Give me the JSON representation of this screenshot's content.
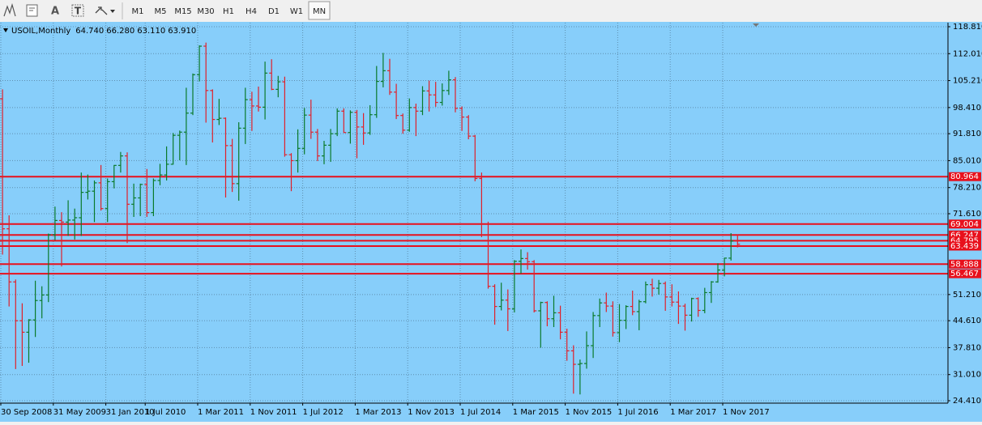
{
  "toolbar": {
    "text_tool": "A",
    "label_tool": "T",
    "timeframes": [
      "M1",
      "M5",
      "M15",
      "M30",
      "H1",
      "H4",
      "D1",
      "W1",
      "MN"
    ],
    "active": "MN"
  },
  "chart_data": {
    "type": "ohlc",
    "symbol": "USOIL,Monthly",
    "header_values": [
      "64.740",
      "66.280",
      "63.110",
      "63.910"
    ],
    "categories": [
      "30 Sep 2008",
      null,
      null,
      null,
      null,
      null,
      null,
      null,
      "31 May 2009",
      null,
      null,
      null,
      null,
      null,
      null,
      null,
      "31 Jan 2010",
      null,
      null,
      null,
      null,
      null,
      "1 Jul 2010",
      null,
      null,
      null,
      null,
      null,
      null,
      null,
      "1 Mar 2011",
      null,
      null,
      null,
      null,
      null,
      null,
      null,
      "1 Nov 2011",
      null,
      null,
      null,
      null,
      null,
      null,
      null,
      "1 Jul 2012",
      null,
      null,
      null,
      null,
      null,
      null,
      null,
      "1 Mar 2013",
      null,
      null,
      null,
      null,
      null,
      null,
      null,
      "1 Nov 2013",
      null,
      null,
      null,
      null,
      null,
      null,
      null,
      "1 Jul 2014",
      null,
      null,
      null,
      null,
      null,
      null,
      null,
      "1 Mar 2015",
      null,
      null,
      null,
      null,
      null,
      null,
      null,
      "1 Nov 2015",
      null,
      null,
      null,
      null,
      null,
      null,
      null,
      "1 Jul 2016",
      null,
      null,
      null,
      null,
      null,
      null,
      null,
      "1 Mar 2017",
      null,
      null,
      null,
      null,
      null,
      null,
      null,
      "1 Nov 2017",
      null,
      null,
      null
    ],
    "open": [
      115.5,
      100.6,
      67.8,
      54.4,
      44.6,
      41.7,
      44.8,
      49.7,
      51.1,
      66.3,
      69.9,
      69.5,
      70.0,
      70.6,
      77.0,
      77.3,
      79.4,
      72.9,
      79.7,
      83.8,
      86.2,
      74.0,
      75.6,
      79.0,
      71.9,
      80.0,
      81.4,
      84.1,
      91.4,
      92.2,
      97.0,
      106.7,
      113.9,
      102.7,
      95.4,
      95.7,
      88.8,
      79.2,
      93.2,
      100.4,
      98.8,
      98.5,
      107.1,
      103.0,
      104.9,
      86.5,
      85.0,
      88.1,
      96.5,
      92.2,
      86.2,
      88.9,
      91.8,
      97.5,
      92.1,
      97.2,
      93.5,
      92.0,
      96.6,
      105.0,
      107.7,
      102.3,
      96.4,
      92.7,
      98.4,
      97.5,
      102.6,
      101.6,
      99.7,
      102.7,
      105.4,
      98.2,
      96.0,
      91.2,
      80.5,
      66.2,
      53.3,
      48.2,
      49.8,
      47.6,
      59.6,
      60.3,
      59.5,
      47.1,
      49.2,
      45.1,
      46.6,
      41.7,
      37.0,
      33.6,
      33.8,
      38.3,
      45.9,
      49.1,
      48.3,
      41.6,
      44.7,
      48.2,
      46.9,
      49.4,
      53.7,
      52.8,
      54.0,
      50.6,
      49.3,
      48.3,
      46.0,
      50.2,
      47.2,
      51.7,
      54.4,
      57.4,
      60.4,
      64.74
    ],
    "high": [
      119.5,
      103.0,
      71.2,
      55.0,
      49.0,
      45.0,
      54.7,
      53.3,
      66.6,
      73.4,
      72.0,
      75.0,
      72.9,
      82.0,
      81.5,
      80.0,
      83.9,
      80.5,
      83.9,
      87.2,
      87.1,
      79.2,
      79.2,
      82.9,
      80.5,
      84.2,
      88.6,
      92.0,
      92.6,
      103.4,
      107.0,
      114.1,
      114.8,
      103.0,
      100.6,
      95.9,
      90.5,
      94.7,
      103.4,
      102.4,
      103.7,
      110.0,
      110.6,
      106.4,
      106.2,
      86.9,
      92.9,
      98.3,
      100.4,
      93.0,
      90.0,
      93.0,
      98.2,
      98.2,
      97.7,
      97.8,
      97.0,
      99.0,
      108.9,
      112.2,
      110.7,
      104.4,
      96.9,
      100.7,
      99.4,
      103.8,
      105.2,
      104.9,
      104.5,
      107.7,
      106.1,
      98.7,
      96.5,
      91.5,
      82.0,
      69.6,
      53.8,
      54.2,
      52.5,
      59.9,
      62.6,
      61.9,
      59.9,
      49.4,
      49.5,
      50.9,
      48.4,
      42.6,
      38.4,
      34.8,
      41.9,
      46.8,
      50.2,
      51.7,
      49.5,
      48.8,
      48.5,
      52.2,
      49.9,
      54.5,
      55.2,
      54.9,
      54.5,
      53.8,
      52.0,
      48.9,
      50.4,
      50.5,
      52.9,
      54.6,
      59.1,
      60.5,
      66.7,
      66.28
    ],
    "low": [
      90.5,
      61.3,
      48.2,
      32.4,
      33.2,
      34.0,
      40.5,
      45.2,
      49.3,
      64.9,
      58.3,
      66.0,
      65.1,
      66.0,
      75.2,
      69.5,
      72.4,
      69.5,
      78.0,
      82.0,
      64.2,
      70.8,
      71.0,
      70.8,
      71.0,
      78.8,
      80.0,
      84.0,
      85.1,
      83.9,
      96.5,
      105.0,
      94.6,
      89.6,
      94.0,
      75.7,
      77.1,
      74.9,
      89.2,
      92.5,
      97.4,
      95.4,
      102.8,
      101.0,
      86.0,
      77.3,
      82.0,
      86.6,
      90.5,
      84.9,
      84.1,
      84.7,
      91.2,
      92.0,
      89.3,
      85.6,
      89.0,
      91.5,
      95.8,
      103.5,
      101.6,
      95.5,
      91.8,
      92.3,
      91.2,
      96.5,
      97.4,
      98.6,
      98.9,
      101.6,
      97.2,
      92.5,
      90.4,
      79.8,
      65.7,
      52.7,
      43.6,
      47.2,
      42.0,
      46.7,
      56.5,
      57.5,
      46.7,
      37.8,
      43.2,
      43.0,
      39.9,
      34.5,
      26.2,
      26.0,
      32.5,
      35.2,
      43.0,
      46.8,
      40.6,
      39.2,
      42.5,
      46.0,
      42.2,
      49.0,
      50.7,
      51.2,
      47.1,
      48.2,
      43.8,
      42.1,
      44.4,
      45.6,
      46.5,
      49.1,
      54.2,
      55.8,
      59.8,
      63.11
    ],
    "close": [
      100.6,
      67.8,
      54.4,
      44.6,
      41.7,
      44.8,
      49.7,
      51.1,
      66.3,
      69.9,
      69.5,
      70.0,
      70.6,
      77.0,
      77.3,
      79.4,
      72.9,
      79.7,
      83.8,
      86.2,
      74.0,
      75.6,
      79.0,
      71.9,
      80.0,
      81.4,
      84.1,
      91.4,
      92.2,
      97.0,
      106.7,
      113.9,
      102.7,
      95.4,
      95.7,
      88.8,
      79.2,
      93.2,
      100.4,
      98.8,
      98.5,
      107.1,
      103.0,
      104.9,
      86.5,
      85.0,
      88.1,
      96.5,
      92.2,
      86.2,
      88.9,
      91.8,
      97.5,
      92.1,
      97.2,
      93.5,
      92.0,
      96.6,
      105.0,
      107.7,
      102.3,
      96.4,
      92.7,
      98.4,
      97.5,
      102.6,
      101.6,
      99.7,
      102.7,
      105.4,
      98.2,
      96.0,
      91.2,
      80.5,
      66.2,
      53.3,
      48.2,
      49.8,
      47.6,
      59.6,
      60.3,
      59.5,
      47.1,
      49.2,
      45.1,
      46.6,
      41.7,
      37.0,
      33.6,
      33.8,
      38.3,
      45.9,
      49.1,
      48.3,
      41.6,
      44.7,
      48.2,
      46.9,
      49.4,
      53.7,
      52.8,
      54.0,
      50.6,
      49.3,
      48.3,
      46.0,
      50.2,
      47.2,
      51.7,
      54.4,
      57.4,
      60.4,
      64.7,
      63.91
    ],
    "ylim": [
      23.8,
      119.83
    ],
    "yticks": [
      {
        "value": 118.81,
        "label": "118.810"
      },
      {
        "value": 112.01,
        "label": "112.010"
      },
      {
        "value": 105.21,
        "label": "105.210"
      },
      {
        "value": 98.41,
        "label": "98.410"
      },
      {
        "value": 91.81,
        "label": "91.810"
      },
      {
        "value": 85.01,
        "label": "85.010"
      },
      {
        "value": 78.21,
        "label": "78.210"
      },
      {
        "value": 71.61,
        "label": "71.610"
      },
      {
        "value": 51.21,
        "label": "51.210"
      },
      {
        "value": 44.61,
        "label": "44.610"
      },
      {
        "value": 37.81,
        "label": "37.810"
      },
      {
        "value": 31.01,
        "label": "31.010"
      },
      {
        "value": 24.41,
        "label": "24.410"
      }
    ],
    "hlines": [
      80.964,
      69.004,
      66.247,
      64.795,
      63.439,
      58.888,
      56.467
    ],
    "up_color": "#0a7a2a",
    "down_color": "#e0202a",
    "hline_color": "#e8101c",
    "background": "#87cefa",
    "grid": true
  }
}
